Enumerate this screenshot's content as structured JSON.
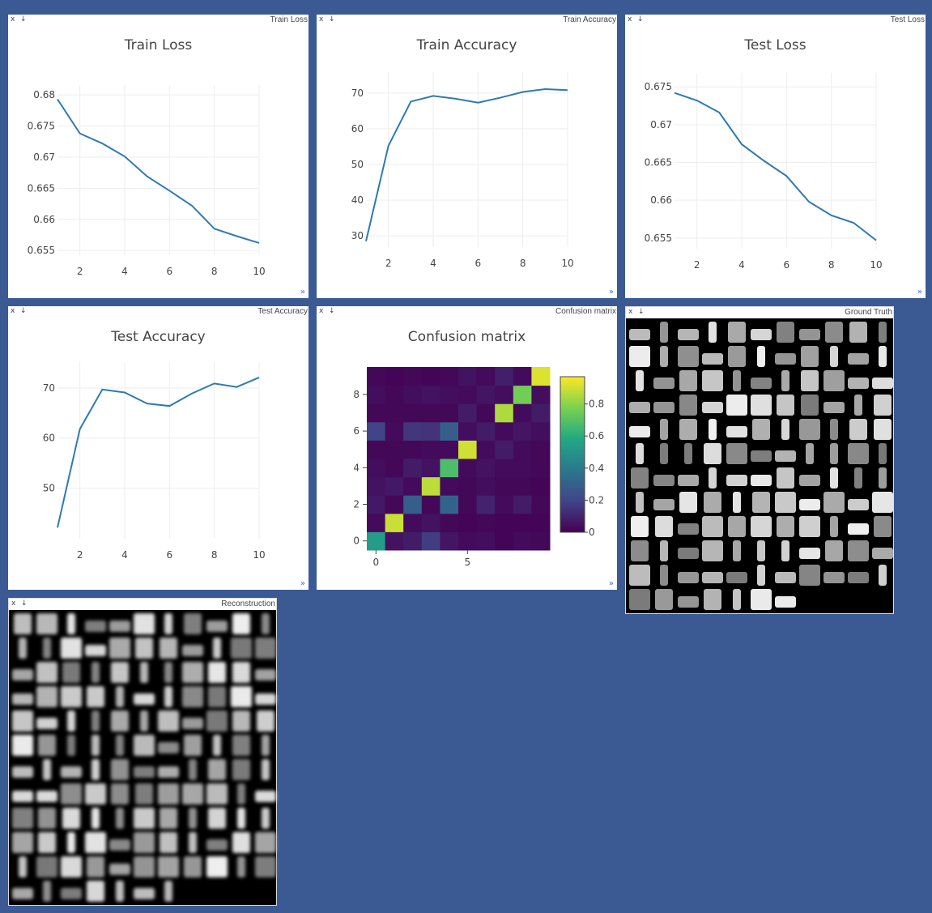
{
  "controls": {
    "close": "x",
    "download": "↓",
    "expand": "»"
  },
  "windows": [
    {
      "id": "train_loss",
      "title": "Train Loss"
    },
    {
      "id": "train_acc",
      "title": "Train Accuracy"
    },
    {
      "id": "test_loss",
      "title": "Test Loss"
    },
    {
      "id": "test_acc",
      "title": "Test Accuracy"
    },
    {
      "id": "confusion",
      "title": "Confusion matrix"
    },
    {
      "id": "gt",
      "title": "Ground Truth"
    },
    {
      "id": "recon",
      "title": "Reconstruction"
    }
  ],
  "colors": {
    "background": "#3b5a94",
    "line": "#2e7ab5",
    "link": "#3b6bd6"
  },
  "chart_data": [
    {
      "type": "line",
      "title": "Train Loss",
      "x": [
        1,
        2,
        3,
        4,
        5,
        6,
        7,
        8,
        9,
        10
      ],
      "y": [
        0.6793,
        0.6738,
        0.6722,
        0.6701,
        0.6669,
        0.6646,
        0.6622,
        0.6585,
        0.6573,
        0.6562
      ],
      "xticks": [
        "2",
        "4",
        "6",
        "8",
        "10"
      ],
      "yticks": [
        "0.655",
        "0.66",
        "0.665",
        "0.67",
        "0.675",
        "0.68"
      ],
      "ylim": [
        0.6545,
        0.6808
      ]
    },
    {
      "type": "line",
      "title": "Train Accuracy",
      "x": [
        1,
        2,
        3,
        4,
        5,
        6,
        7,
        8,
        9,
        10
      ],
      "y": [
        28.5,
        55.2,
        67.6,
        69.2,
        68.4,
        67.3,
        68.7,
        70.3,
        71.1,
        70.8
      ],
      "xticks": [
        "2",
        "4",
        "6",
        "8",
        "10"
      ],
      "yticks": [
        "30",
        "40",
        "50",
        "60",
        "70"
      ],
      "ylim": [
        27.3,
        74.5
      ]
    },
    {
      "type": "line",
      "title": "Test Loss",
      "x": [
        1,
        2,
        3,
        4,
        5,
        6,
        7,
        8,
        9,
        10
      ],
      "y": [
        0.6742,
        0.6732,
        0.6716,
        0.6674,
        0.6652,
        0.6632,
        0.6598,
        0.658,
        0.657,
        0.6547
      ],
      "xticks": [
        "2",
        "4",
        "6",
        "8",
        "10"
      ],
      "yticks": [
        "0.655",
        "0.66",
        "0.665",
        "0.67",
        "0.675"
      ],
      "ylim": [
        0.6538,
        0.6762
      ]
    },
    {
      "type": "line",
      "title": "Test Accuracy",
      "x": [
        1,
        2,
        3,
        4,
        5,
        6,
        7,
        8,
        9,
        10
      ],
      "y": [
        42.1,
        61.8,
        69.7,
        69.1,
        66.9,
        66.4,
        68.9,
        70.9,
        70.2,
        72.1
      ],
      "xticks": [
        "2",
        "4",
        "6",
        "8",
        "10"
      ],
      "yticks": [
        "50",
        "60",
        "70"
      ],
      "ylim": [
        40.2,
        74.2
      ]
    },
    {
      "type": "heatmap",
      "title": "Confusion matrix",
      "xticks": [
        "0",
        "5"
      ],
      "yticks": [
        "0",
        "2",
        "4",
        "6",
        "8"
      ],
      "colorbar_ticks": [
        "0",
        "0.2",
        "0.4",
        "0.6",
        "0.8"
      ],
      "values": [
        [
          0.55,
          0.05,
          0.08,
          0.18,
          0.06,
          0.03,
          0.04,
          0.01,
          0.03,
          0.02
        ],
        [
          0.03,
          0.92,
          0.03,
          0.05,
          0.02,
          0.01,
          0.02,
          0.01,
          0.01,
          0.01
        ],
        [
          0.07,
          0.02,
          0.3,
          0.02,
          0.32,
          0.02,
          0.1,
          0.03,
          0.08,
          0.02
        ],
        [
          0.05,
          0.07,
          0.03,
          0.9,
          0.03,
          0.02,
          0.04,
          0.02,
          0.02,
          0.01
        ],
        [
          0.04,
          0.02,
          0.08,
          0.05,
          0.7,
          0.03,
          0.05,
          0.03,
          0.03,
          0.02
        ],
        [
          0.02,
          0.02,
          0.02,
          0.03,
          0.03,
          0.93,
          0.03,
          0.08,
          0.03,
          0.02
        ],
        [
          0.2,
          0.03,
          0.16,
          0.15,
          0.3,
          0.04,
          0.08,
          0.03,
          0.06,
          0.04
        ],
        [
          0.02,
          0.02,
          0.02,
          0.02,
          0.02,
          0.08,
          0.02,
          0.88,
          0.03,
          0.08
        ],
        [
          0.04,
          0.02,
          0.04,
          0.05,
          0.04,
          0.03,
          0.06,
          0.04,
          0.78,
          0.04
        ],
        [
          0.02,
          0.01,
          0.02,
          0.01,
          0.02,
          0.05,
          0.03,
          0.09,
          0.03,
          0.95
        ]
      ]
    }
  ]
}
